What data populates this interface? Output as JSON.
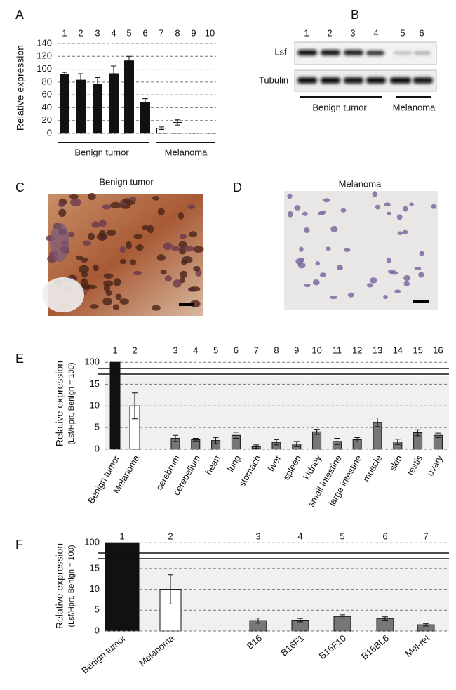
{
  "chart_data": [
    {
      "type": "bar",
      "label": "A",
      "ylabel": "Relative expression",
      "categories": [
        "1",
        "2",
        "3",
        "4",
        "5",
        "6",
        "7",
        "8",
        "9",
        "10"
      ],
      "values": [
        92,
        83,
        77,
        93,
        113,
        48,
        8,
        17,
        0.5,
        0.5
      ],
      "errors": [
        3,
        10,
        10,
        12,
        7,
        6,
        2,
        4,
        0,
        0
      ],
      "colors": [
        "#111",
        "#111",
        "#111",
        "#111",
        "#111",
        "#111",
        "#fff",
        "#fff",
        "#fff",
        "#fff"
      ],
      "ylim": [
        0,
        140
      ],
      "yticks": [
        0,
        20,
        40,
        60,
        80,
        100,
        120,
        140
      ],
      "grid": true,
      "groups": [
        "Benign tumor",
        "Melanoma"
      ]
    },
    {
      "type": "bar",
      "label": "E",
      "ylabel": "Relative expression",
      "ylabel2": "(Lsf/Hprt, Benign = 100)",
      "lanes": [
        "1",
        "2",
        "3",
        "4",
        "5",
        "6",
        "7",
        "8",
        "9",
        "10",
        "11",
        "12",
        "13",
        "14",
        "15",
        "16"
      ],
      "categories": [
        "Benign tumor",
        "Melanoma",
        "cerebrum",
        "cerebellum",
        "heart",
        "lung",
        "stomach",
        "liver",
        "spleen",
        "kidney",
        "small intestine",
        "large intestine",
        "muscle",
        "skin",
        "testis",
        "ovary"
      ],
      "values": [
        100,
        10,
        2.5,
        2.2,
        2,
        3.2,
        0.6,
        1.6,
        1.2,
        4,
        1.8,
        2.2,
        6.2,
        1.7,
        3.8,
        3.2
      ],
      "errors": [
        null,
        3,
        0.7,
        0.3,
        0.7,
        0.7,
        0.4,
        0.6,
        0.6,
        0.6,
        0.7,
        0.5,
        1,
        0.6,
        0.7,
        0.5
      ],
      "colors": [
        "#111",
        "#fff",
        "#777",
        "#777",
        "#777",
        "#777",
        "#777",
        "#777",
        "#777",
        "#777",
        "#777",
        "#777",
        "#777",
        "#777",
        "#777",
        "#777"
      ],
      "ylim": [
        0,
        102
      ],
      "ybreak": [
        17,
        97
      ],
      "yticks": [
        0,
        5,
        10,
        15,
        100
      ],
      "grid": true
    },
    {
      "type": "bar",
      "label": "F",
      "ylabel": "Relative expression",
      "ylabel2": "(Lsf/Hprt, Benign = 100)",
      "lanes": [
        "1",
        "2",
        "3",
        "4",
        "5",
        "6",
        "7"
      ],
      "categories": [
        "Benign tumor",
        "Melanoma",
        "B16",
        "B16F1",
        "B16F10",
        "B16BL6",
        "Mel-ret"
      ],
      "values": [
        100,
        10,
        2.5,
        2.6,
        3.5,
        3,
        1.5
      ],
      "errors": [
        null,
        3.5,
        0.6,
        0.4,
        0.4,
        0.4,
        0.3
      ],
      "colors": [
        "#111",
        "#fff",
        "#777",
        "#777",
        "#777",
        "#777",
        "#777"
      ],
      "ylim": [
        0,
        102
      ],
      "ybreak": [
        17,
        97
      ],
      "yticks": [
        0,
        5,
        10,
        15,
        100
      ],
      "grid": true
    }
  ],
  "blot": {
    "label": "B",
    "lanes": [
      "1",
      "2",
      "3",
      "4",
      "5",
      "6"
    ],
    "rows": [
      "Lsf",
      "Tubulin"
    ],
    "groups": [
      "Benign tumor",
      "Melanoma"
    ]
  },
  "histology": [
    {
      "label": "C",
      "title": "Benign tumor"
    },
    {
      "label": "D",
      "title": "Melanoma"
    }
  ]
}
